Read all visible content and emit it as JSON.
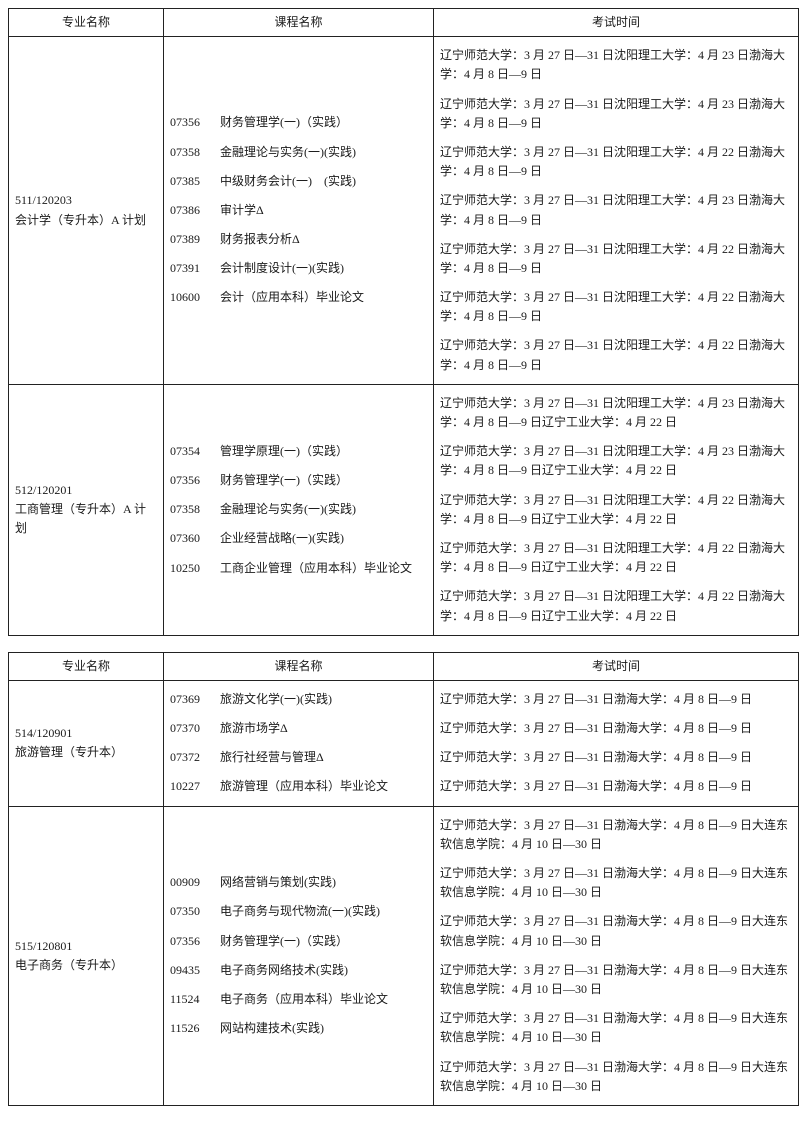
{
  "headers": {
    "major": "专业名称",
    "course": "课程名称",
    "time": "考试时间"
  },
  "tables": [
    {
      "rows": [
        {
          "major_code": "511/120203",
          "major_name": "会计学（专升本）A 计划",
          "courses": [
            {
              "code": "07356",
              "name": "财务管理学(一)（实践）",
              "time": "辽宁师范大学：3 月 27 日—31 日沈阳理工大学：4 月 23 日渤海大学：4 月 8 日—9 日"
            },
            {
              "code": "07358",
              "name": "金融理论与实务(一)(实践)",
              "time": "辽宁师范大学：3 月 27 日—31 日沈阳理工大学：4 月 23 日渤海大学：4 月 8 日—9 日"
            },
            {
              "code": "07385",
              "name": "中级财务会计(一)　(实践)",
              "time": "辽宁师范大学：3 月 27 日—31 日沈阳理工大学：4 月 22 日渤海大学：4 月 8 日—9 日"
            },
            {
              "code": "07386",
              "name": "审计学Δ",
              "time": "辽宁师范大学：3 月 27 日—31 日沈阳理工大学：4 月 23 日渤海大学：4 月 8 日—9 日"
            },
            {
              "code": "07389",
              "name": "财务报表分析Δ",
              "time": "辽宁师范大学：3 月 27 日—31 日沈阳理工大学：4 月 22 日渤海大学：4 月 8 日—9 日"
            },
            {
              "code": "07391",
              "name": "会计制度设计(一)(实践)",
              "time": "辽宁师范大学：3 月 27 日—31 日沈阳理工大学：4 月 22 日渤海大学：4 月 8 日—9 日"
            },
            {
              "code": "10600",
              "name": "会计（应用本科）毕业论文",
              "time": "辽宁师范大学：3 月 27 日—31 日沈阳理工大学：4 月 22 日渤海大学：4 月 8 日—9 日"
            }
          ]
        },
        {
          "major_code": "512/120201",
          "major_name": "工商管理（专升本）A 计划",
          "courses": [
            {
              "code": "07354",
              "name": "管理学原理(一)（实践）",
              "time": "辽宁师范大学：3 月 27 日—31 日沈阳理工大学：4 月 23 日渤海大学：4 月 8 日—9 日辽宁工业大学：4 月 22 日"
            },
            {
              "code": "07356",
              "name": "财务管理学(一)（实践）",
              "time": "辽宁师范大学：3 月 27 日—31 日沈阳理工大学：4 月 23 日渤海大学：4 月 8 日—9 日辽宁工业大学：4 月 22 日"
            },
            {
              "code": "07358",
              "name": "金融理论与实务(一)(实践)",
              "time": "辽宁师范大学：3 月 27 日—31 日沈阳理工大学：4 月 22 日渤海大学：4 月 8 日—9 日辽宁工业大学：4 月 22 日"
            },
            {
              "code": "07360",
              "name": "企业经营战略(一)(实践)",
              "time": "辽宁师范大学：3 月 27 日—31 日沈阳理工大学：4 月 22 日渤海大学：4 月 8 日—9 日辽宁工业大学：4 月 22 日"
            },
            {
              "code": "10250",
              "name": "工商企业管理（应用本科）毕业论文",
              "time": "辽宁师范大学：3 月 27 日—31 日沈阳理工大学：4 月 22 日渤海大学：4 月 8 日—9 日辽宁工业大学：4 月 22 日"
            }
          ]
        }
      ]
    },
    {
      "rows": [
        {
          "major_code": "514/120901",
          "major_name": "旅游管理（专升本）",
          "courses": [
            {
              "code": "07369",
              "name": "旅游文化学(一)(实践)",
              "time": "辽宁师范大学：3 月 27 日—31 日渤海大学：4 月 8 日—9 日"
            },
            {
              "code": "07370",
              "name": "旅游市场学Δ",
              "time": "辽宁师范大学：3 月 27 日—31 日渤海大学：4 月 8 日—9 日"
            },
            {
              "code": "07372",
              "name": "旅行社经营与管理Δ",
              "time": "辽宁师范大学：3 月 27 日—31 日渤海大学：4 月 8 日—9 日"
            },
            {
              "code": "10227",
              "name": "旅游管理（应用本科）毕业论文",
              "time": "辽宁师范大学：3 月 27 日—31 日渤海大学：4 月 8 日—9 日"
            }
          ]
        },
        {
          "major_code": "515/120801",
          "major_name": "电子商务（专升本）",
          "courses": [
            {
              "code": "00909",
              "name": "网络营销与策划(实践)",
              "time": "辽宁师范大学：3 月 27 日—31 日渤海大学：4 月 8 日—9 日大连东软信息学院：4 月 10 日—30 日"
            },
            {
              "code": "07350",
              "name": "电子商务与现代物流(一)(实践)",
              "time": "辽宁师范大学：3 月 27 日—31 日渤海大学：4 月 8 日—9 日大连东软信息学院：4 月 10 日—30 日"
            },
            {
              "code": "07356",
              "name": "财务管理学(一)（实践）",
              "time": "辽宁师范大学：3 月 27 日—31 日渤海大学：4 月 8 日—9 日大连东软信息学院：4 月 10 日—30 日"
            },
            {
              "code": "09435",
              "name": "电子商务网络技术(实践)",
              "time": "辽宁师范大学：3 月 27 日—31 日渤海大学：4 月 8 日—9 日大连东软信息学院：4 月 10 日—30 日"
            },
            {
              "code": "11524",
              "name": "电子商务（应用本科）毕业论文",
              "time": "辽宁师范大学：3 月 27 日—31 日渤海大学：4 月 8 日—9 日大连东软信息学院：4 月 10 日—30 日"
            },
            {
              "code": "11526",
              "name": "网站构建技术(实践)",
              "time": "辽宁师范大学：3 月 27 日—31 日渤海大学：4 月 8 日—9 日大连东软信息学院：4 月 10 日—30 日"
            }
          ]
        }
      ]
    }
  ]
}
